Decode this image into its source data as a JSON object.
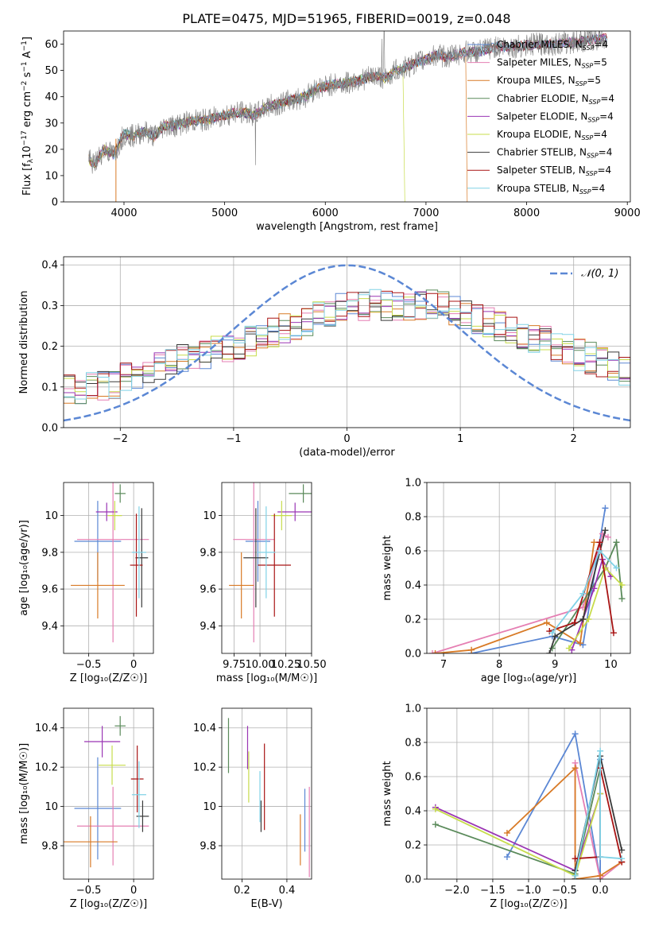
{
  "title": "PLATE=0475, MJD=51965, FIBERID=0019, z=0.048",
  "colors": {
    "Chabrier MILES": "#5b87d4",
    "Salpeter MILES": "#e57fb3",
    "Kroupa MILES": "#d87a26",
    "Chabrier ELODIE": "#5a8a5a",
    "Salpeter ELODIE": "#9a35b4",
    "Kroupa ELODIE": "#c7dc4b",
    "Chabrier STELIB": "#3a3a3a",
    "Salpeter STELIB": "#a81414",
    "Kroupa STELIB": "#80d2e6",
    "data": "#808080",
    "normal": "#5b87d4"
  },
  "chart_data": [
    {
      "id": "spectrum",
      "type": "line",
      "xlabel": "wavelength [Angstrom, rest frame]",
      "ylabel_parts": [
        "Flux [f",
        "λ",
        "10",
        "−17",
        " erg cm",
        "−2",
        " s",
        "−1",
        " A",
        "−1",
        "]"
      ],
      "xlim": [
        3400,
        9030
      ],
      "ylim": [
        0,
        65
      ],
      "xticks": [
        4000,
        5000,
        6000,
        7000,
        8000,
        9000
      ],
      "yticks": [
        0,
        10,
        20,
        30,
        40,
        50,
        60
      ],
      "data_curve": [
        [
          3650,
          16
        ],
        [
          3700,
          14
        ],
        [
          3750,
          17
        ],
        [
          3800,
          20
        ],
        [
          3850,
          19
        ],
        [
          3900,
          18
        ],
        [
          3950,
          22
        ],
        [
          4000,
          26
        ],
        [
          4100,
          25
        ],
        [
          4200,
          27
        ],
        [
          4300,
          25
        ],
        [
          4400,
          29
        ],
        [
          4500,
          29
        ],
        [
          4600,
          30
        ],
        [
          4700,
          31
        ],
        [
          4800,
          31
        ],
        [
          4900,
          32
        ],
        [
          5000,
          33
        ],
        [
          5100,
          34
        ],
        [
          5200,
          34
        ],
        [
          5300,
          33
        ],
        [
          5400,
          36
        ],
        [
          5500,
          37
        ],
        [
          5600,
          38
        ],
        [
          5700,
          39
        ],
        [
          5800,
          40
        ],
        [
          5900,
          43
        ],
        [
          6000,
          44
        ],
        [
          6100,
          45
        ],
        [
          6200,
          45
        ],
        [
          6300,
          46
        ],
        [
          6400,
          47
        ],
        [
          6500,
          48
        ],
        [
          6600,
          47
        ],
        [
          6700,
          50
        ],
        [
          6800,
          51
        ],
        [
          6900,
          53
        ],
        [
          7000,
          54
        ],
        [
          7100,
          56
        ],
        [
          7200,
          55
        ],
        [
          7300,
          56
        ],
        [
          7400,
          57
        ],
        [
          7500,
          57
        ],
        [
          7700,
          59
        ],
        [
          7900,
          59
        ],
        [
          8100,
          60
        ],
        [
          8300,
          60
        ],
        [
          8500,
          61
        ],
        [
          8700,
          62
        ],
        [
          8800,
          62
        ]
      ],
      "legend": [
        {
          "name": "Chabrier MILES",
          "nssp": "4"
        },
        {
          "name": "Salpeter MILES",
          "nssp": "5"
        },
        {
          "name": "Kroupa MILES",
          "nssp": "5"
        },
        {
          "name": "Chabrier ELODIE",
          "nssp": "4"
        },
        {
          "name": "Salpeter ELODIE",
          "nssp": "4"
        },
        {
          "name": "Kroupa ELODIE",
          "nssp": "4"
        },
        {
          "name": "Chabrier STELIB",
          "nssp": "4"
        },
        {
          "name": "Salpeter STELIB",
          "nssp": "4"
        },
        {
          "name": "Kroupa STELIB",
          "nssp": "4"
        }
      ],
      "legend_prefix": "N",
      "legend_sub": "SSP"
    },
    {
      "id": "residuals",
      "type": "histogram",
      "xlabel": "(data-model)/error",
      "ylabel": "Normed distribution",
      "xlim": [
        -2.5,
        2.5
      ],
      "ylim": [
        0,
        0.42
      ],
      "xticks": [
        -2,
        -1,
        0,
        1,
        2
      ],
      "yticks": [
        0.0,
        0.1,
        0.2,
        0.3,
        0.4
      ],
      "gaussian_label": "𝒩(0, 1)",
      "bin_width": 0.1,
      "envelope": [
        0.07,
        0.075,
        0.08,
        0.085,
        0.09,
        0.095,
        0.1,
        0.105,
        0.11,
        0.12,
        0.13,
        0.14,
        0.15,
        0.16,
        0.17,
        0.175,
        0.18,
        0.185,
        0.19,
        0.2,
        0.21,
        0.22,
        0.23,
        0.24,
        0.25,
        0.26,
        0.27,
        0.28,
        0.29,
        0.3,
        0.3,
        0.3,
        0.3,
        0.3,
        0.3,
        0.3,
        0.3,
        0.3,
        0.29,
        0.28,
        0.27,
        0.26,
        0.25,
        0.24,
        0.23,
        0.22,
        0.21,
        0.2,
        0.19,
        0.18,
        0.17,
        0.16,
        0.15,
        0.14,
        0.13,
        0.12,
        0.11,
        0.1,
        0.09,
        0.08
      ]
    },
    {
      "id": "age_vs_Z",
      "type": "errorbar",
      "xlabel": "Z [log₁₀(Z/Z☉)]",
      "ylabel": "age  [log₁₀(age/yr)]",
      "xlim": [
        -0.78,
        0.22
      ],
      "ylim": [
        9.25,
        10.18
      ],
      "xticks": [
        -0.5,
        0.0
      ],
      "yticks": [
        9.4,
        9.6,
        9.8,
        10.0
      ],
      "points": [
        {
          "s": "Chabrier MILES",
          "x": -0.4,
          "xe": 0.26,
          "y": 9.86,
          "ye": 0.22
        },
        {
          "s": "Salpeter MILES",
          "x": -0.23,
          "xe": 0.4,
          "y": 9.87,
          "ye": 0.56
        },
        {
          "s": "Kroupa MILES",
          "x": -0.4,
          "xe": 0.3,
          "y": 9.62,
          "ye": 0.18
        },
        {
          "s": "Chabrier ELODIE",
          "x": -0.15,
          "xe": 0.06,
          "y": 10.12,
          "ye": 0.05
        },
        {
          "s": "Salpeter ELODIE",
          "x": -0.3,
          "xe": 0.12,
          "y": 10.02,
          "ye": 0.05
        },
        {
          "s": "Kroupa ELODIE",
          "x": -0.21,
          "xe": 0.08,
          "y": 10.0,
          "ye": 0.08
        },
        {
          "s": "Chabrier STELIB",
          "x": 0.09,
          "xe": 0.07,
          "y": 9.77,
          "ye": 0.27
        },
        {
          "s": "Salpeter STELIB",
          "x": 0.03,
          "xe": 0.07,
          "y": 9.73,
          "ye": 0.28
        },
        {
          "s": "Kroupa STELIB",
          "x": 0.06,
          "xe": 0.08,
          "y": 9.8,
          "ye": 0.25
        }
      ]
    },
    {
      "id": "age_vs_mass",
      "type": "errorbar",
      "xlabel": "mass [log₁₀(M/M☉)]",
      "ylabel": "",
      "xlim": [
        9.63,
        10.5
      ],
      "ylim": [
        9.25,
        10.18
      ],
      "xticks": [
        9.75,
        10.0,
        10.25,
        10.5
      ],
      "xticklabels": [
        "9.75",
        "10.00",
        "10.25",
        "10.50"
      ],
      "yticks": [
        9.4,
        9.6,
        9.8,
        10.0
      ],
      "points": [
        {
          "s": "Chabrier MILES",
          "x": 9.98,
          "xe": 0.12,
          "y": 9.86,
          "ye": 0.22
        },
        {
          "s": "Salpeter MILES",
          "x": 9.94,
          "xe": 0.2,
          "y": 9.87,
          "ye": 0.56
        },
        {
          "s": "Kroupa MILES",
          "x": 9.82,
          "xe": 0.12,
          "y": 9.62,
          "ye": 0.18
        },
        {
          "s": "Chabrier ELODIE",
          "x": 10.42,
          "xe": 0.14,
          "y": 10.12,
          "ye": 0.05
        },
        {
          "s": "Salpeter ELODIE",
          "x": 10.34,
          "xe": 0.17,
          "y": 10.02,
          "ye": 0.05
        },
        {
          "s": "Kroupa ELODIE",
          "x": 10.21,
          "xe": 0.1,
          "y": 10.0,
          "ye": 0.08
        },
        {
          "s": "Chabrier STELIB",
          "x": 9.96,
          "xe": 0.12,
          "y": 9.77,
          "ye": 0.27
        },
        {
          "s": "Salpeter STELIB",
          "x": 10.14,
          "xe": 0.16,
          "y": 9.73,
          "ye": 0.28
        },
        {
          "s": "Kroupa STELIB",
          "x": 10.06,
          "xe": 0.09,
          "y": 9.8,
          "ye": 0.25
        }
      ]
    },
    {
      "id": "weight_vs_age",
      "type": "line",
      "xlabel": "age  [log₁₀(age/yr)]",
      "ylabel": "mass weight",
      "xlim": [
        6.7,
        10.35
      ],
      "ylim": [
        0,
        1.0
      ],
      "xticks": [
        7,
        8,
        9,
        10
      ],
      "yticks": [
        0.0,
        0.2,
        0.4,
        0.6,
        0.8,
        1.0
      ],
      "series": [
        {
          "s": "Chabrier MILES",
          "pts": [
            [
              7.5,
              0.0
            ],
            [
              8.95,
              0.1
            ],
            [
              9.5,
              0.05
            ],
            [
              9.9,
              0.85
            ]
          ]
        },
        {
          "s": "Salpeter MILES",
          "pts": [
            [
              6.8,
              0.0
            ],
            [
              9.5,
              0.27
            ],
            [
              9.85,
              0.7
            ],
            [
              9.95,
              0.68
            ]
          ]
        },
        {
          "s": "Kroupa MILES",
          "pts": [
            [
              6.85,
              0.0
            ],
            [
              7.5,
              0.02
            ],
            [
              8.85,
              0.18
            ],
            [
              9.45,
              0.06
            ],
            [
              9.7,
              0.65
            ]
          ]
        },
        {
          "s": "Chabrier ELODIE",
          "pts": [
            [
              8.95,
              0.03
            ],
            [
              9.9,
              0.5
            ],
            [
              10.1,
              0.65
            ],
            [
              10.2,
              0.32
            ]
          ]
        },
        {
          "s": "Salpeter ELODIE",
          "pts": [
            [
              9.3,
              0.02
            ],
            [
              9.7,
              0.38
            ],
            [
              9.85,
              0.55
            ],
            [
              10.0,
              0.45
            ]
          ]
        },
        {
          "s": "Kroupa ELODIE",
          "pts": [
            [
              9.25,
              0.03
            ],
            [
              9.6,
              0.2
            ],
            [
              9.9,
              0.5
            ],
            [
              10.2,
              0.4
            ]
          ]
        },
        {
          "s": "Chabrier STELIB",
          "pts": [
            [
              8.9,
              0.0
            ],
            [
              9.0,
              0.1
            ],
            [
              9.5,
              0.2
            ],
            [
              9.9,
              0.72
            ]
          ]
        },
        {
          "s": "Salpeter STELIB",
          "pts": [
            [
              8.9,
              0.13
            ],
            [
              9.35,
              0.18
            ],
            [
              9.8,
              0.65
            ],
            [
              10.05,
              0.12
            ]
          ]
        },
        {
          "s": "Kroupa STELIB",
          "pts": [
            [
              8.95,
              0.12
            ],
            [
              9.5,
              0.35
            ],
            [
              9.8,
              0.6
            ],
            [
              10.1,
              0.5
            ]
          ]
        }
      ]
    },
    {
      "id": "mass_vs_Z",
      "type": "errorbar",
      "xlabel": "Z [log₁₀(Z/Z☉)]",
      "ylabel": "mass [log₁₀(M/M☉)]",
      "xlim": [
        -0.78,
        0.22
      ],
      "ylim": [
        9.63,
        10.5
      ],
      "xticks": [
        -0.5,
        0.0
      ],
      "yticks": [
        9.8,
        10.0,
        10.2,
        10.4
      ],
      "points": [
        {
          "s": "Chabrier MILES",
          "x": -0.4,
          "xe": 0.26,
          "y": 9.99,
          "ye": 0.26
        },
        {
          "s": "Salpeter MILES",
          "x": -0.23,
          "xe": 0.4,
          "y": 9.9,
          "ye": 0.2
        },
        {
          "s": "Kroupa MILES",
          "x": -0.48,
          "xe": 0.3,
          "y": 9.82,
          "ye": 0.13
        },
        {
          "s": "Chabrier ELODIE",
          "x": -0.15,
          "xe": 0.06,
          "y": 10.41,
          "ye": 0.05
        },
        {
          "s": "Salpeter ELODIE",
          "x": -0.35,
          "xe": 0.2,
          "y": 10.33,
          "ye": 0.08
        },
        {
          "s": "Kroupa ELODIE",
          "x": -0.24,
          "xe": 0.15,
          "y": 10.21,
          "ye": 0.1
        },
        {
          "s": "Chabrier STELIB",
          "x": 0.1,
          "xe": 0.07,
          "y": 9.95,
          "ye": 0.08
        },
        {
          "s": "Salpeter STELIB",
          "x": 0.04,
          "xe": 0.07,
          "y": 10.14,
          "ye": 0.17
        },
        {
          "s": "Kroupa STELIB",
          "x": 0.06,
          "xe": 0.08,
          "y": 10.06,
          "ye": 0.17
        }
      ]
    },
    {
      "id": "mass_vs_ebv",
      "type": "errorbar",
      "xlabel": "E(B-V)",
      "ylabel": "",
      "xlim": [
        0.11,
        0.51
      ],
      "ylim": [
        9.63,
        10.5
      ],
      "xticks": [
        0.2,
        0.4
      ],
      "yticks": [
        9.8,
        10.0,
        10.2,
        10.4
      ],
      "points": [
        {
          "s": "Chabrier MILES",
          "x": 0.48,
          "xe": 0,
          "y": 9.93,
          "ye": 0.16
        },
        {
          "s": "Salpeter MILES",
          "x": 0.5,
          "xe": 0,
          "y": 9.87,
          "ye": 0.23
        },
        {
          "s": "Kroupa MILES",
          "x": 0.46,
          "xe": 0,
          "y": 9.83,
          "ye": 0.13
        },
        {
          "s": "Chabrier ELODIE",
          "x": 0.14,
          "xe": 0,
          "y": 10.31,
          "ye": 0.14
        },
        {
          "s": "Salpeter ELODIE",
          "x": 0.225,
          "xe": 0,
          "y": 10.3,
          "ye": 0.11
        },
        {
          "s": "Kroupa ELODIE",
          "x": 0.23,
          "xe": 0,
          "y": 10.15,
          "ye": 0.13
        },
        {
          "s": "Chabrier STELIB",
          "x": 0.285,
          "xe": 0,
          "y": 9.95,
          "ye": 0.08
        },
        {
          "s": "Salpeter STELIB",
          "x": 0.3,
          "xe": 0,
          "y": 10.1,
          "ye": 0.22
        },
        {
          "s": "Kroupa STELIB",
          "x": 0.28,
          "xe": 0,
          "y": 10.05,
          "ye": 0.13
        }
      ]
    },
    {
      "id": "weight_vs_Z",
      "type": "line",
      "xlabel": "Z [log₁₀(Z/Z☉)]",
      "ylabel": "mass weight",
      "xlim": [
        -2.42,
        0.42
      ],
      "ylim": [
        0,
        1.0
      ],
      "xticks": [
        -2.0,
        -1.5,
        -1.0,
        -0.5,
        0.0
      ],
      "xticklabels": [
        "−2.0",
        "−1.5",
        "−1.0",
        "−0.5",
        "0.0"
      ],
      "yticks": [
        0.0,
        0.2,
        0.4,
        0.6,
        0.8,
        1.0
      ],
      "series": [
        {
          "s": "Chabrier MILES",
          "pts": [
            [
              -1.3,
              0.13
            ],
            [
              -0.35,
              0.85
            ],
            [
              0.0,
              0.0
            ],
            [
              0.0,
              0.7
            ]
          ]
        },
        {
          "s": "Salpeter MILES",
          "pts": [
            [
              -0.35,
              0.0
            ],
            [
              -0.35,
              0.68
            ],
            [
              0.0,
              0.0
            ],
            [
              0.3,
              0.1
            ]
          ]
        },
        {
          "s": "Kroupa MILES",
          "pts": [
            [
              -1.3,
              0.27
            ],
            [
              -0.35,
              0.65
            ],
            [
              -0.35,
              0.0
            ],
            [
              0.0,
              0.02
            ],
            [
              0.3,
              0.1
            ]
          ]
        },
        {
          "s": "Chabrier ELODIE",
          "pts": [
            [
              -2.3,
              0.32
            ],
            [
              -0.35,
              0.03
            ],
            [
              0.0,
              0.65
            ]
          ]
        },
        {
          "s": "Salpeter ELODIE",
          "pts": [
            [
              -2.3,
              0.42
            ],
            [
              -0.35,
              0.05
            ],
            [
              0.0,
              0.5
            ]
          ]
        },
        {
          "s": "Kroupa ELODIE",
          "pts": [
            [
              -2.3,
              0.41
            ],
            [
              -0.35,
              0.02
            ],
            [
              0.0,
              0.5
            ]
          ]
        },
        {
          "s": "Chabrier STELIB",
          "pts": [
            [
              -0.35,
              0.0
            ],
            [
              -0.35,
              0.05
            ],
            [
              0.0,
              0.72
            ],
            [
              0.3,
              0.17
            ]
          ]
        },
        {
          "s": "Salpeter STELIB",
          "pts": [
            [
              -0.35,
              0.12
            ],
            [
              0.0,
              0.13
            ],
            [
              0.0,
              0.65
            ],
            [
              0.3,
              0.1
            ]
          ]
        },
        {
          "s": "Kroupa STELIB",
          "pts": [
            [
              -0.35,
              0.02
            ],
            [
              0.0,
              0.75
            ],
            [
              0.0,
              0.13
            ],
            [
              0.3,
              0.12
            ]
          ]
        }
      ]
    }
  ]
}
